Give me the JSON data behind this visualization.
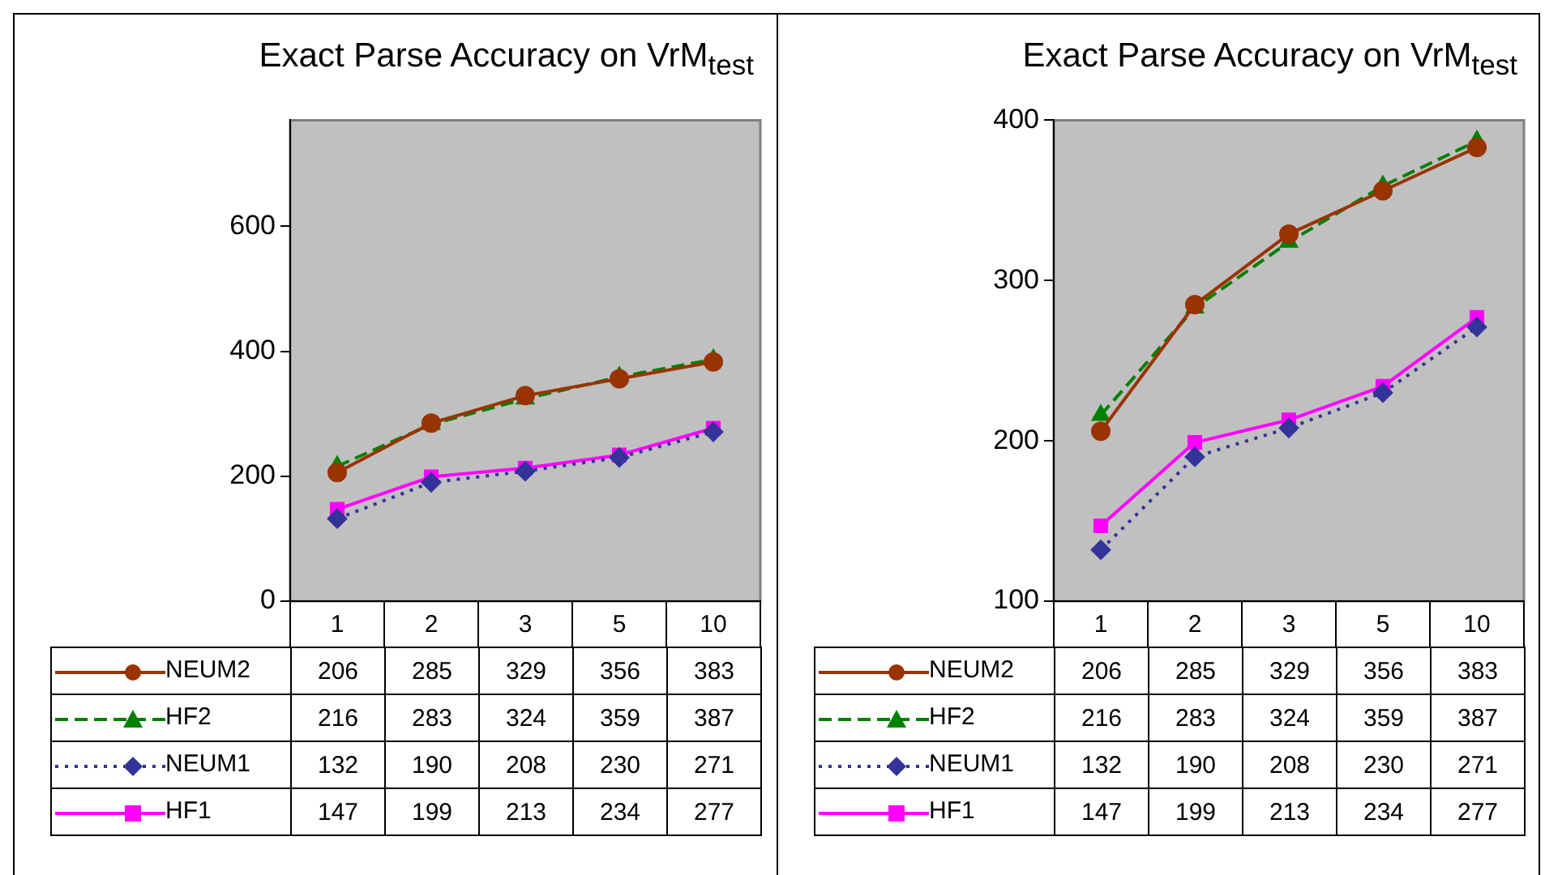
{
  "chart_data": [
    {
      "type": "line",
      "title": "Exact Parse Accuracy on VrM$_{test}$",
      "categories": [
        "1",
        "2",
        "3",
        "5",
        "10"
      ],
      "series": [
        {
          "name": "NEUM2",
          "color": "#993300",
          "values": [
            206,
            285,
            329,
            356,
            383
          ],
          "marker": "circle",
          "line_style": "solid"
        },
        {
          "name": "HF2",
          "color": "#008000",
          "values": [
            216,
            283,
            324,
            359,
            387
          ],
          "marker": "triangle",
          "line_style": "dashed"
        },
        {
          "name": "NEUM1",
          "color": "#333399",
          "values": [
            132,
            190,
            208,
            230,
            271
          ],
          "marker": "diamond",
          "line_style": "dotted"
        },
        {
          "name": "HF1",
          "color": "#ff00ff",
          "values": [
            147,
            199,
            213,
            234,
            277
          ],
          "marker": "square",
          "line_style": "solid"
        }
      ],
      "ylim": [
        0,
        770
      ],
      "yticks": [
        0,
        200,
        400,
        600
      ],
      "grid": false,
      "legend": "bottom",
      "data_labels": true
    },
    {
      "type": "line",
      "title": "Exact Parse Accuracy on VrM$_{test}$",
      "categories": [
        "1",
        "2",
        "3",
        "5",
        "10"
      ],
      "series": [
        {
          "name": "NEUM2",
          "color": "#993300",
          "values": [
            206,
            285,
            329,
            356,
            383
          ],
          "marker": "circle",
          "line_style": "solid"
        },
        {
          "name": "HF2",
          "color": "#008000",
          "values": [
            216,
            283,
            324,
            359,
            387
          ],
          "marker": "triangle",
          "line_style": "dashed"
        },
        {
          "name": "NEUM1",
          "color": "#333399",
          "values": [
            132,
            190,
            208,
            230,
            271
          ],
          "marker": "diamond",
          "line_style": "dotted"
        },
        {
          "name": "HF1",
          "color": "#ff00ff",
          "values": [
            147,
            199,
            213,
            234,
            277
          ],
          "marker": "square",
          "line_style": "solid"
        }
      ],
      "ylim": [
        100,
        400
      ],
      "yticks": [
        100,
        200,
        300,
        400
      ],
      "grid": false,
      "legend": "bottom",
      "data_labels": true
    }
  ]
}
